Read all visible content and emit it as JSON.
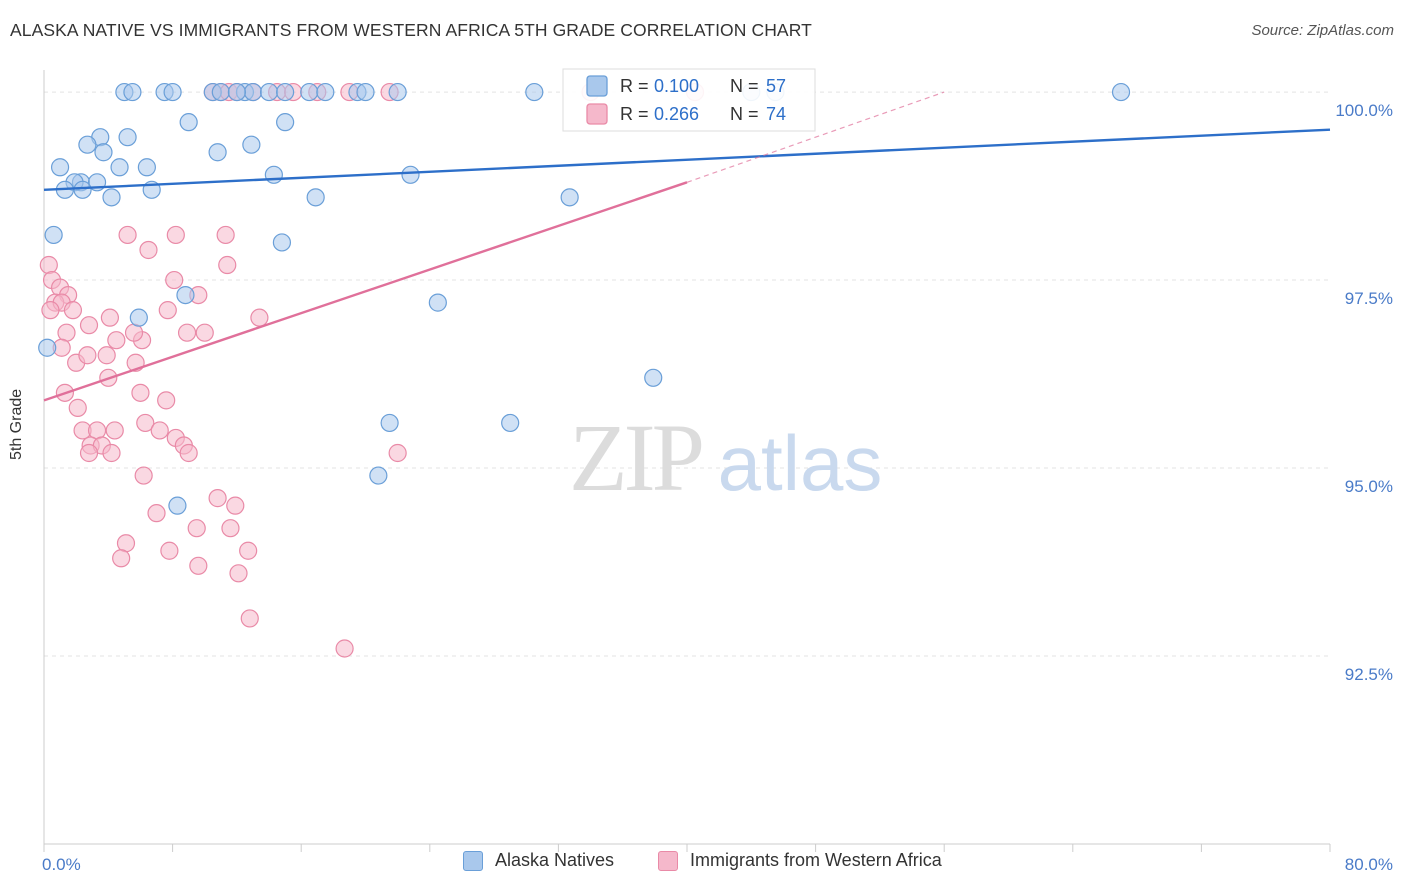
{
  "title": "ALASKA NATIVE VS IMMIGRANTS FROM WESTERN AFRICA 5TH GRADE CORRELATION CHART",
  "source": "Source: ZipAtlas.com",
  "watermark": {
    "zip": "ZIP",
    "atlas": "atlas"
  },
  "colors": {
    "blue_fill": "#a9c8ec",
    "blue_stroke": "#6a9fd8",
    "blue_line": "#2d6fc9",
    "pink_fill": "#f5b8cb",
    "pink_stroke": "#e98aa7",
    "pink_line": "#e0709a",
    "tick_label": "#4a7bc8",
    "grid": "#e3e3e3"
  },
  "legend": {
    "rows": [
      {
        "r_label": "R = ",
        "r_value": "0.100",
        "n_label": "N = ",
        "n_value": "57",
        "series": "blue"
      },
      {
        "r_label": "R = ",
        "r_value": "0.266",
        "n_label": "N = ",
        "n_value": "74",
        "series": "pink"
      }
    ]
  },
  "chart_data": {
    "type": "scatter",
    "title": "ALASKA NATIVE VS IMMIGRANTS FROM WESTERN AFRICA 5TH GRADE CORRELATION CHART",
    "xlabel": "",
    "ylabel": "5th Grade",
    "xlim": [
      0,
      80
    ],
    "ylim": [
      90.0,
      100.4
    ],
    "x_tick_labels": [
      {
        "value": 0,
        "label": "0.0%"
      },
      {
        "value": 80,
        "label": "80.0%"
      }
    ],
    "y_ticks": [
      {
        "value": 100.0,
        "label": "100.0%"
      },
      {
        "value": 97.5,
        "label": "97.5%"
      },
      {
        "value": 95.0,
        "label": "95.0%"
      },
      {
        "value": 92.5,
        "label": "92.5%"
      }
    ],
    "x_minor_ticks": [
      0,
      8,
      16,
      24,
      32,
      40,
      48,
      56,
      64,
      72,
      80
    ],
    "grid": true,
    "legend_position": "top-center",
    "series": [
      {
        "name": "Alaska Natives",
        "color": "blue",
        "r": 0.1,
        "n": 57,
        "trend": {
          "x0": 0,
          "y0": 98.7,
          "x1": 80,
          "y1": 99.5
        },
        "points": [
          [
            5.0,
            100.0
          ],
          [
            5.5,
            100.0
          ],
          [
            7.5,
            100.0
          ],
          [
            8.0,
            100.0
          ],
          [
            10.5,
            100.0
          ],
          [
            11.0,
            100.0
          ],
          [
            12.5,
            100.0
          ],
          [
            13.0,
            100.0
          ],
          [
            14.0,
            100.0
          ],
          [
            15.0,
            100.0
          ],
          [
            16.5,
            100.0
          ],
          [
            17.5,
            100.0
          ],
          [
            19.5,
            100.0
          ],
          [
            20.0,
            100.0
          ],
          [
            22.0,
            100.0
          ],
          [
            30.5,
            100.0
          ],
          [
            45.5,
            100.0
          ],
          [
            67.0,
            100.0
          ],
          [
            44.0,
            100.0
          ],
          [
            9.0,
            99.6
          ],
          [
            15.0,
            99.6
          ],
          [
            3.5,
            99.4
          ],
          [
            5.2,
            99.4
          ],
          [
            2.7,
            99.3
          ],
          [
            12.9,
            99.3
          ],
          [
            10.8,
            99.2
          ],
          [
            3.7,
            99.2
          ],
          [
            1.0,
            99.0
          ],
          [
            4.7,
            99.0
          ],
          [
            6.4,
            99.0
          ],
          [
            14.3,
            98.9
          ],
          [
            22.8,
            98.9
          ],
          [
            2.3,
            98.8
          ],
          [
            3.3,
            98.8
          ],
          [
            1.9,
            98.8
          ],
          [
            6.7,
            98.7
          ],
          [
            1.3,
            98.7
          ],
          [
            2.4,
            98.7
          ],
          [
            4.2,
            98.6
          ],
          [
            16.9,
            98.6
          ],
          [
            32.7,
            98.6
          ],
          [
            0.6,
            98.1
          ],
          [
            14.8,
            98.0
          ],
          [
            8.8,
            97.3
          ],
          [
            24.5,
            97.2
          ],
          [
            5.9,
            97.0
          ],
          [
            0.2,
            96.6
          ],
          [
            37.9,
            96.2
          ],
          [
            21.5,
            95.6
          ],
          [
            29.0,
            95.6
          ],
          [
            20.8,
            94.9
          ],
          [
            8.3,
            94.5
          ],
          [
            12.0,
            100.0
          ]
        ]
      },
      {
        "name": "Immigrants from Western Africa",
        "color": "pink",
        "r": 0.266,
        "n": 74,
        "trend": {
          "x0": 0,
          "y0": 95.9,
          "x1": 40,
          "y1": 98.8
        },
        "trend_extension": {
          "x0": 40,
          "y0": 98.8,
          "x1": 56,
          "y1": 100.0
        },
        "points": [
          [
            10.5,
            100.0
          ],
          [
            11.0,
            100.0
          ],
          [
            11.5,
            100.0
          ],
          [
            12.0,
            100.0
          ],
          [
            14.5,
            100.0
          ],
          [
            15.5,
            100.0
          ],
          [
            17.0,
            100.0
          ],
          [
            19.0,
            100.0
          ],
          [
            21.5,
            100.0
          ],
          [
            34.0,
            100.0
          ],
          [
            40.5,
            100.0
          ],
          [
            0.3,
            97.7
          ],
          [
            0.5,
            97.5
          ],
          [
            1.0,
            97.4
          ],
          [
            1.5,
            97.3
          ],
          [
            0.7,
            97.2
          ],
          [
            1.1,
            97.2
          ],
          [
            0.4,
            97.1
          ],
          [
            1.8,
            97.1
          ],
          [
            5.2,
            98.1
          ],
          [
            8.2,
            98.1
          ],
          [
            11.3,
            98.1
          ],
          [
            6.5,
            97.9
          ],
          [
            11.4,
            97.7
          ],
          [
            8.1,
            97.5
          ],
          [
            9.6,
            97.3
          ],
          [
            7.7,
            97.1
          ],
          [
            4.1,
            97.0
          ],
          [
            13.4,
            97.0
          ],
          [
            2.8,
            96.9
          ],
          [
            1.4,
            96.8
          ],
          [
            4.5,
            96.7
          ],
          [
            6.1,
            96.7
          ],
          [
            8.9,
            96.8
          ],
          [
            10.0,
            96.8
          ],
          [
            5.6,
            96.8
          ],
          [
            1.1,
            96.6
          ],
          [
            3.9,
            96.5
          ],
          [
            5.7,
            96.4
          ],
          [
            2.0,
            96.4
          ],
          [
            2.7,
            96.5
          ],
          [
            4.0,
            96.2
          ],
          [
            6.0,
            96.0
          ],
          [
            1.3,
            96.0
          ],
          [
            7.6,
            95.9
          ],
          [
            2.1,
            95.8
          ],
          [
            2.4,
            95.5
          ],
          [
            3.3,
            95.5
          ],
          [
            4.4,
            95.5
          ],
          [
            6.3,
            95.6
          ],
          [
            7.2,
            95.5
          ],
          [
            8.2,
            95.4
          ],
          [
            8.7,
            95.3
          ],
          [
            2.9,
            95.3
          ],
          [
            3.6,
            95.3
          ],
          [
            9.0,
            95.2
          ],
          [
            2.8,
            95.2
          ],
          [
            4.2,
            95.2
          ],
          [
            22.0,
            95.2
          ],
          [
            6.2,
            94.9
          ],
          [
            10.8,
            94.6
          ],
          [
            11.9,
            94.5
          ],
          [
            7.0,
            94.4
          ],
          [
            9.5,
            94.2
          ],
          [
            11.6,
            94.2
          ],
          [
            5.1,
            94.0
          ],
          [
            7.8,
            93.9
          ],
          [
            12.7,
            93.9
          ],
          [
            4.8,
            93.8
          ],
          [
            9.6,
            93.7
          ],
          [
            12.1,
            93.6
          ],
          [
            12.8,
            93.0
          ],
          [
            18.7,
            92.6
          ],
          [
            13.0,
            100.0
          ]
        ]
      }
    ]
  },
  "bottom_legend": {
    "items": [
      {
        "label": "Alaska Natives",
        "series": "blue"
      },
      {
        "label": "Immigrants from Western Africa",
        "series": "pink"
      }
    ]
  }
}
